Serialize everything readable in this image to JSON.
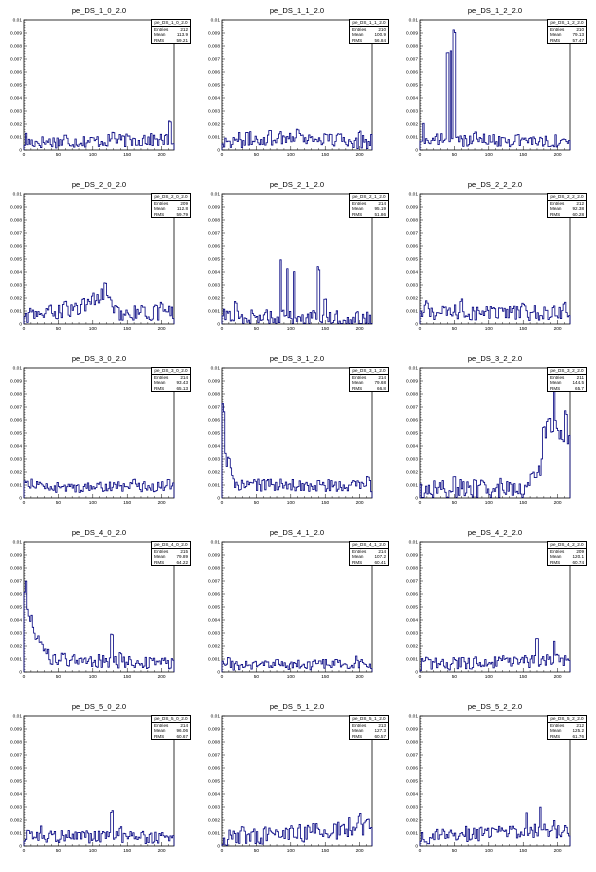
{
  "stat_labels": {
    "entries": "Entries",
    "mean": "Mean",
    "rms": "RMS"
  },
  "colors": {
    "series": "#00007f",
    "axis": "#000000",
    "background": "#ffffff"
  },
  "chart_data": [
    {
      "type": "histogram",
      "title": "pe_DS_1_0_2.0",
      "stats": {
        "name": "pe_DS_1_0_2.0",
        "entries": "212",
        "mean": "113.9",
        "rms": "59.21"
      },
      "xlim": [
        0,
        218
      ],
      "ylim": [
        0,
        0.01
      ],
      "xticks": [
        0,
        50,
        100,
        150,
        200
      ],
      "yticks": [
        0,
        0.001,
        0.002,
        0.003,
        0.004,
        0.005,
        0.006,
        0.007,
        0.008,
        0.009,
        0.01
      ],
      "ytick_labels": [
        "0",
        "0.001",
        "0.002",
        "0.003",
        "0.004",
        "0.005",
        "0.006",
        "0.007",
        "0.008",
        "0.009",
        "0.01"
      ],
      "profile": [
        [
          0,
          0.0006
        ],
        [
          218,
          0.0008
        ]
      ],
      "peaks": [
        [
          3,
          0.0014
        ],
        [
          60,
          0.0012
        ],
        [
          130,
          0.0015
        ],
        [
          175,
          0.0013
        ],
        [
          212,
          0.0024
        ]
      ],
      "noise": 0.0005
    },
    {
      "type": "histogram",
      "title": "pe_DS_1_1_2.0",
      "stats": {
        "name": "pe_DS_1_1_2.0",
        "entries": "210",
        "mean": "100.9",
        "rms": "56.84"
      },
      "xlim": [
        0,
        218
      ],
      "ylim": [
        0,
        0.01
      ],
      "xticks": [
        0,
        50,
        100,
        150,
        200
      ],
      "yticks": [
        0,
        0.001,
        0.002,
        0.003,
        0.004,
        0.005,
        0.006,
        0.007,
        0.008,
        0.009,
        0.01
      ],
      "ytick_labels": [
        "0",
        "0.001",
        "0.002",
        "0.003",
        "0.004",
        "0.005",
        "0.006",
        "0.007",
        "0.008",
        "0.009",
        "0.01"
      ],
      "profile": [
        [
          0,
          0.0007
        ],
        [
          100,
          0.001
        ],
        [
          218,
          0.0006
        ]
      ],
      "peaks": [
        [
          70,
          0.0016
        ],
        [
          110,
          0.0017
        ],
        [
          200,
          0.0015
        ]
      ],
      "noise": 0.0006
    },
    {
      "type": "histogram",
      "title": "pe_DS_1_2_2.0",
      "stats": {
        "name": "pe_DS_1_2_2.0",
        "entries": "210",
        "mean": "79.13",
        "rms": "57.47"
      },
      "xlim": [
        0,
        218
      ],
      "ylim": [
        0,
        0.01
      ],
      "xticks": [
        0,
        50,
        100,
        150,
        200
      ],
      "yticks": [
        0,
        0.001,
        0.002,
        0.003,
        0.004,
        0.005,
        0.006,
        0.007,
        0.008,
        0.009,
        0.01
      ],
      "ytick_labels": [
        "0",
        "0.001",
        "0.002",
        "0.003",
        "0.004",
        "0.005",
        "0.006",
        "0.007",
        "0.008",
        "0.009",
        "0.01"
      ],
      "profile": [
        [
          0,
          0.0008
        ],
        [
          218,
          0.0007
        ]
      ],
      "peaks": [
        [
          5,
          0.0022
        ],
        [
          40,
          0.0085
        ],
        [
          45,
          0.0085
        ],
        [
          50,
          0.0098
        ],
        [
          80,
          0.0014
        ],
        [
          140,
          0.0012
        ]
      ],
      "noise": 0.0005
    },
    {
      "type": "histogram",
      "title": "pe_DS_2_0_2.0",
      "stats": {
        "name": "pe_DS_2_0_2.0",
        "entries": "209",
        "mean": "112.8",
        "rms": "59.79"
      },
      "xlim": [
        0,
        218
      ],
      "ylim": [
        0,
        0.01
      ],
      "xticks": [
        0,
        50,
        100,
        150,
        200
      ],
      "yticks": [
        0,
        0.001,
        0.002,
        0.003,
        0.004,
        0.005,
        0.006,
        0.007,
        0.008,
        0.009,
        0.01
      ],
      "ytick_labels": [
        "0",
        "0.001",
        "0.002",
        "0.003",
        "0.004",
        "0.005",
        "0.006",
        "0.007",
        "0.008",
        "0.009",
        "0.01"
      ],
      "profile": [
        [
          0,
          0.0006
        ],
        [
          80,
          0.0012
        ],
        [
          115,
          0.0022
        ],
        [
          140,
          0.0008
        ],
        [
          218,
          0.0009
        ]
      ],
      "peaks": [
        [
          60,
          0.002
        ],
        [
          100,
          0.0025
        ],
        [
          118,
          0.0034
        ],
        [
          200,
          0.0018
        ]
      ],
      "noise": 0.0006
    },
    {
      "type": "histogram",
      "title": "pe_DS_2_1_2.0",
      "stats": {
        "name": "pe_DS_2_1_2.0",
        "entries": "214",
        "mean": "95.19",
        "rms": "51.86"
      },
      "xlim": [
        0,
        218
      ],
      "ylim": [
        0,
        0.01
      ],
      "xticks": [
        0,
        50,
        100,
        150,
        200
      ],
      "yticks": [
        0,
        0.001,
        0.002,
        0.003,
        0.004,
        0.005,
        0.006,
        0.007,
        0.008,
        0.009,
        0.01
      ],
      "ytick_labels": [
        "0",
        "0.001",
        "0.002",
        "0.003",
        "0.004",
        "0.005",
        "0.006",
        "0.007",
        "0.008",
        "0.009",
        "0.01"
      ],
      "profile": [
        [
          0,
          0.0006
        ],
        [
          218,
          0.0004
        ]
      ],
      "peaks": [
        [
          20,
          0.0018
        ],
        [
          85,
          0.005
        ],
        [
          95,
          0.0045
        ],
        [
          105,
          0.0045
        ],
        [
          140,
          0.0045
        ],
        [
          150,
          0.002
        ]
      ],
      "noise": 0.0006
    },
    {
      "type": "histogram",
      "title": "pe_DS_2_2_2.0",
      "stats": {
        "name": "pe_DS_2_2_2.0",
        "entries": "212",
        "mean": "92.38",
        "rms": "60.28"
      },
      "xlim": [
        0,
        218
      ],
      "ylim": [
        0,
        0.01
      ],
      "xticks": [
        0,
        50,
        100,
        150,
        200
      ],
      "yticks": [
        0,
        0.001,
        0.002,
        0.003,
        0.004,
        0.005,
        0.006,
        0.007,
        0.008,
        0.009,
        0.01
      ],
      "ytick_labels": [
        "0",
        "0.001",
        "0.002",
        "0.003",
        "0.004",
        "0.005",
        "0.006",
        "0.007",
        "0.008",
        "0.009",
        "0.01"
      ],
      "profile": [
        [
          0,
          0.0009
        ],
        [
          218,
          0.0008
        ]
      ],
      "peaks": [
        [
          10,
          0.0018
        ],
        [
          60,
          0.002
        ],
        [
          150,
          0.0016
        ],
        [
          210,
          0.0018
        ]
      ],
      "noise": 0.0006
    },
    {
      "type": "histogram",
      "title": "pe_DS_3_0_2.0",
      "stats": {
        "name": "pe_DS_3_0_2.0",
        "entries": "214",
        "mean": "93.43",
        "rms": "65.13"
      },
      "xlim": [
        0,
        218
      ],
      "ylim": [
        0,
        0.01
      ],
      "xticks": [
        0,
        50,
        100,
        150,
        200
      ],
      "yticks": [
        0,
        0.001,
        0.002,
        0.003,
        0.004,
        0.005,
        0.006,
        0.007,
        0.008,
        0.009,
        0.01
      ],
      "ytick_labels": [
        "0",
        "0.001",
        "0.002",
        "0.003",
        "0.004",
        "0.005",
        "0.006",
        "0.007",
        "0.008",
        "0.009",
        "0.01"
      ],
      "profile": [
        [
          0,
          0.0012
        ],
        [
          40,
          0.0008
        ],
        [
          218,
          0.0009
        ]
      ],
      "peaks": [
        [
          5,
          0.0015
        ],
        [
          160,
          0.0016
        ],
        [
          210,
          0.0016
        ]
      ],
      "noise": 0.0004
    },
    {
      "type": "histogram",
      "title": "pe_DS_3_1_2.0",
      "stats": {
        "name": "pe_DS_3_1_2.0",
        "entries": "214",
        "mean": "79.68",
        "rms": "66.8"
      },
      "xlim": [
        0,
        218
      ],
      "ylim": [
        0,
        0.01
      ],
      "xticks": [
        0,
        50,
        100,
        150,
        200
      ],
      "yticks": [
        0,
        0.001,
        0.002,
        0.003,
        0.004,
        0.005,
        0.006,
        0.007,
        0.008,
        0.009,
        0.01
      ],
      "ytick_labels": [
        "0",
        "0.001",
        "0.002",
        "0.003",
        "0.004",
        "0.005",
        "0.006",
        "0.007",
        "0.008",
        "0.009",
        "0.01"
      ],
      "profile": [
        [
          0,
          0.006
        ],
        [
          5,
          0.003
        ],
        [
          20,
          0.001
        ],
        [
          218,
          0.0009
        ]
      ],
      "peaks": [
        [
          2,
          0.0075
        ],
        [
          10,
          0.0035
        ],
        [
          60,
          0.0015
        ],
        [
          140,
          0.0014
        ],
        [
          212,
          0.0017
        ]
      ],
      "noise": 0.0005
    },
    {
      "type": "histogram",
      "title": "pe_DS_3_2_2.0",
      "stats": {
        "name": "pe_DS_3_2_2.0",
        "entries": "211",
        "mean": "144.5",
        "rms": "65.7"
      },
      "xlim": [
        0,
        218
      ],
      "ylim": [
        0,
        0.01
      ],
      "xticks": [
        0,
        50,
        100,
        150,
        200
      ],
      "yticks": [
        0,
        0.001,
        0.002,
        0.003,
        0.004,
        0.005,
        0.006,
        0.007,
        0.008,
        0.009,
        0.01
      ],
      "ytick_labels": [
        "0",
        "0.001",
        "0.002",
        "0.003",
        "0.004",
        "0.005",
        "0.006",
        "0.007",
        "0.008",
        "0.009",
        "0.01"
      ],
      "profile": [
        [
          0,
          0.0006
        ],
        [
          150,
          0.0008
        ],
        [
          175,
          0.002
        ],
        [
          185,
          0.006
        ],
        [
          218,
          0.004
        ]
      ],
      "peaks": [
        [
          50,
          0.0018
        ],
        [
          180,
          0.006
        ],
        [
          195,
          0.0095
        ],
        [
          212,
          0.007
        ]
      ],
      "noise": 0.0008
    },
    {
      "type": "histogram",
      "title": "pe_DS_4_0_2.0",
      "stats": {
        "name": "pe_DS_4_0_2.0",
        "entries": "215",
        "mean": "79.89",
        "rms": "64.22"
      },
      "xlim": [
        0,
        218
      ],
      "ylim": [
        0,
        0.01
      ],
      "xticks": [
        0,
        50,
        100,
        150,
        200
      ],
      "yticks": [
        0,
        0.001,
        0.002,
        0.003,
        0.004,
        0.005,
        0.006,
        0.007,
        0.008,
        0.009,
        0.01
      ],
      "ytick_labels": [
        "0",
        "0.001",
        "0.002",
        "0.003",
        "0.004",
        "0.005",
        "0.006",
        "0.007",
        "0.008",
        "0.009",
        "0.01"
      ],
      "profile": [
        [
          0,
          0.006
        ],
        [
          15,
          0.0025
        ],
        [
          40,
          0.001
        ],
        [
          218,
          0.0006
        ]
      ],
      "peaks": [
        [
          3,
          0.0078
        ],
        [
          10,
          0.0045
        ],
        [
          20,
          0.003
        ],
        [
          128,
          0.0033
        ],
        [
          140,
          0.0016
        ]
      ],
      "noise": 0.0005
    },
    {
      "type": "histogram",
      "title": "pe_DS_4_1_2.0",
      "stats": {
        "name": "pe_DS_4_1_2.0",
        "entries": "214",
        "mean": "107.2",
        "rms": "60.41"
      },
      "xlim": [
        0,
        218
      ],
      "ylim": [
        0,
        0.01
      ],
      "xticks": [
        0,
        50,
        100,
        150,
        200
      ],
      "yticks": [
        0,
        0.001,
        0.002,
        0.003,
        0.004,
        0.005,
        0.006,
        0.007,
        0.008,
        0.009,
        0.01
      ],
      "ytick_labels": [
        "0",
        "0.001",
        "0.002",
        "0.003",
        "0.004",
        "0.005",
        "0.006",
        "0.007",
        "0.008",
        "0.009",
        "0.01"
      ],
      "profile": [
        [
          0,
          0.0005
        ],
        [
          218,
          0.0006
        ]
      ],
      "peaks": [
        [
          10,
          0.0012
        ],
        [
          80,
          0.001
        ],
        [
          195,
          0.0014
        ]
      ],
      "noise": 0.0004
    },
    {
      "type": "histogram",
      "title": "pe_DS_4_2_2.0",
      "stats": {
        "name": "pe_DS_4_2_2.0",
        "entries": "209",
        "mean": "120.1",
        "rms": "60.74"
      },
      "xlim": [
        0,
        218
      ],
      "ylim": [
        0,
        0.01
      ],
      "xticks": [
        0,
        50,
        100,
        150,
        200
      ],
      "yticks": [
        0,
        0.001,
        0.002,
        0.003,
        0.004,
        0.005,
        0.006,
        0.007,
        0.008,
        0.009,
        0.01
      ],
      "ytick_labels": [
        "0",
        "0.001",
        "0.002",
        "0.003",
        "0.004",
        "0.005",
        "0.006",
        "0.007",
        "0.008",
        "0.009",
        "0.01"
      ],
      "profile": [
        [
          0,
          0.0006
        ],
        [
          150,
          0.0008
        ],
        [
          218,
          0.001
        ]
      ],
      "peaks": [
        [
          10,
          0.0012
        ],
        [
          170,
          0.0027
        ],
        [
          195,
          0.0025
        ]
      ],
      "noise": 0.0005
    },
    {
      "type": "histogram",
      "title": "pe_DS_5_0_2.0",
      "stats": {
        "name": "pe_DS_5_0_2.0",
        "entries": "214",
        "mean": "96.06",
        "rms": "60.67"
      },
      "xlim": [
        0,
        218
      ],
      "ylim": [
        0,
        0.01
      ],
      "xticks": [
        0,
        50,
        100,
        150,
        200
      ],
      "yticks": [
        0,
        0.001,
        0.002,
        0.003,
        0.004,
        0.005,
        0.006,
        0.007,
        0.008,
        0.009,
        0.01
      ],
      "ytick_labels": [
        "0",
        "0.001",
        "0.002",
        "0.003",
        "0.004",
        "0.005",
        "0.006",
        "0.007",
        "0.008",
        "0.009",
        "0.01"
      ],
      "profile": [
        [
          0,
          0.0008
        ],
        [
          218,
          0.0006
        ]
      ],
      "peaks": [
        [
          25,
          0.0017
        ],
        [
          128,
          0.0028
        ],
        [
          140,
          0.0016
        ]
      ],
      "noise": 0.0005
    },
    {
      "type": "histogram",
      "title": "pe_DS_5_1_2.0",
      "stats": {
        "name": "pe_DS_5_1_2.0",
        "entries": "213",
        "mean": "127.3",
        "rms": "60.57"
      },
      "xlim": [
        0,
        218
      ],
      "ylim": [
        0,
        0.01
      ],
      "xticks": [
        0,
        50,
        100,
        150,
        200
      ],
      "yticks": [
        0,
        0.001,
        0.002,
        0.003,
        0.004,
        0.005,
        0.006,
        0.007,
        0.008,
        0.009,
        0.01
      ],
      "ytick_labels": [
        "0",
        "0.001",
        "0.002",
        "0.003",
        "0.004",
        "0.005",
        "0.006",
        "0.007",
        "0.008",
        "0.009",
        "0.01"
      ],
      "profile": [
        [
          0,
          0.0006
        ],
        [
          120,
          0.001
        ],
        [
          218,
          0.0014
        ]
      ],
      "peaks": [
        [
          30,
          0.0016
        ],
        [
          100,
          0.0015
        ],
        [
          185,
          0.0025
        ],
        [
          200,
          0.0027
        ],
        [
          212,
          0.0024
        ]
      ],
      "noise": 0.0007
    },
    {
      "type": "histogram",
      "title": "pe_DS_5_2_2.0",
      "stats": {
        "name": "pe_DS_5_2_2.0",
        "entries": "212",
        "mean": "125.2",
        "rms": "61.76"
      },
      "xlim": [
        0,
        218
      ],
      "ylim": [
        0,
        0.01
      ],
      "xticks": [
        0,
        50,
        100,
        150,
        200
      ],
      "yticks": [
        0,
        0.001,
        0.002,
        0.003,
        0.004,
        0.005,
        0.006,
        0.007,
        0.008,
        0.009,
        0.01
      ],
      "ytick_labels": [
        "0",
        "0.001",
        "0.002",
        "0.003",
        "0.004",
        "0.005",
        "0.006",
        "0.007",
        "0.008",
        "0.009",
        "0.01"
      ],
      "profile": [
        [
          0,
          0.0007
        ],
        [
          150,
          0.0012
        ],
        [
          218,
          0.0012
        ]
      ],
      "peaks": [
        [
          155,
          0.0028
        ],
        [
          175,
          0.0035
        ],
        [
          195,
          0.0022
        ]
      ],
      "noise": 0.0006
    }
  ]
}
